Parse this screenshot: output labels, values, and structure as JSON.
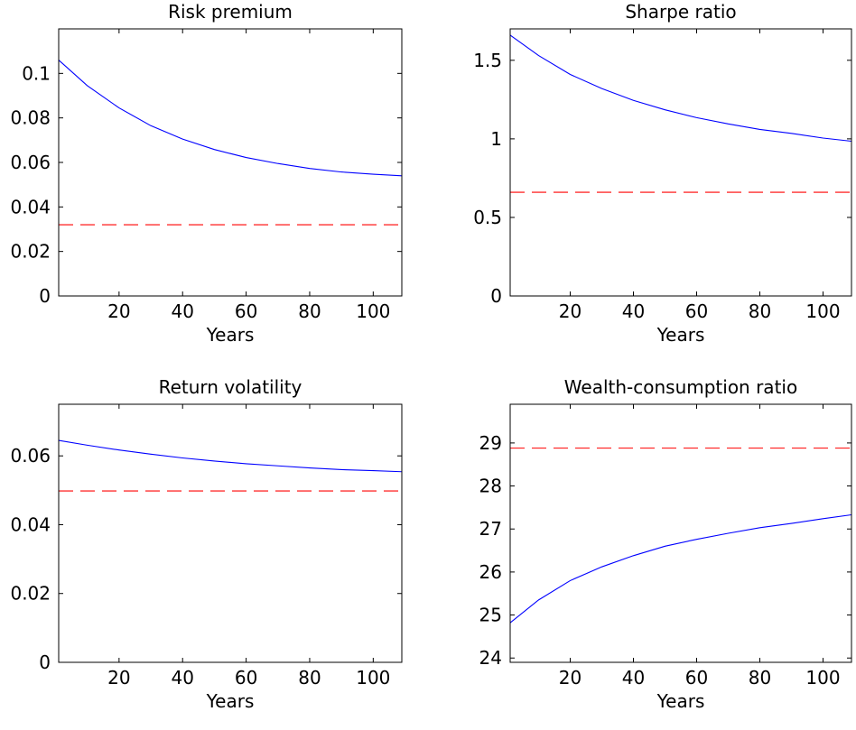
{
  "chart_data": [
    {
      "type": "line",
      "title": "Risk premium",
      "xlabel": "Years",
      "ylabel": "",
      "xlim": [
        1,
        109
      ],
      "ylim": [
        0,
        0.12
      ],
      "xticks": [
        20,
        40,
        60,
        80,
        100
      ],
      "yticks": [
        0,
        0.02,
        0.04,
        0.06,
        0.08,
        0.1
      ],
      "ytick_labels": [
        "0",
        "0.02",
        "0.04",
        "0.06",
        "0.08",
        "0.1"
      ],
      "grid": false,
      "series": [
        {
          "style": "solid",
          "color": "#0000ff",
          "x": [
            1,
            10,
            20,
            30,
            40,
            50,
            60,
            70,
            80,
            90,
            100,
            109
          ],
          "y": [
            0.106,
            0.0945,
            0.0845,
            0.0765,
            0.0705,
            0.0658,
            0.0622,
            0.0595,
            0.0573,
            0.0557,
            0.0547,
            0.054
          ]
        },
        {
          "style": "dashed",
          "color": "#ff0000",
          "x": [
            1,
            109
          ],
          "y": [
            0.032,
            0.032
          ]
        }
      ]
    },
    {
      "type": "line",
      "title": "Sharpe ratio",
      "xlabel": "Years",
      "ylabel": "",
      "xlim": [
        1,
        109
      ],
      "ylim": [
        0,
        1.7
      ],
      "xticks": [
        20,
        40,
        60,
        80,
        100
      ],
      "yticks": [
        0,
        0.5,
        1,
        1.5
      ],
      "ytick_labels": [
        "0",
        "0.5",
        "1",
        "1.5"
      ],
      "grid": false,
      "series": [
        {
          "style": "solid",
          "color": "#0000ff",
          "x": [
            1,
            10,
            20,
            30,
            40,
            50,
            60,
            70,
            80,
            90,
            100,
            109
          ],
          "y": [
            1.66,
            1.53,
            1.41,
            1.32,
            1.245,
            1.185,
            1.135,
            1.095,
            1.06,
            1.035,
            1.005,
            0.985
          ]
        },
        {
          "style": "dashed",
          "color": "#ff0000",
          "x": [
            1,
            109
          ],
          "y": [
            0.66,
            0.66
          ]
        }
      ]
    },
    {
      "type": "line",
      "title": "Return volatility",
      "xlabel": "Years",
      "ylabel": "",
      "xlim": [
        1,
        109
      ],
      "ylim": [
        0,
        0.075
      ],
      "xticks": [
        20,
        40,
        60,
        80,
        100
      ],
      "yticks": [
        0,
        0.02,
        0.04,
        0.06
      ],
      "ytick_labels": [
        "0",
        "0.02",
        "0.04",
        "0.06"
      ],
      "grid": false,
      "series": [
        {
          "style": "solid",
          "color": "#0000ff",
          "x": [
            1,
            10,
            20,
            30,
            40,
            50,
            60,
            70,
            80,
            90,
            100,
            109
          ],
          "y": [
            0.0645,
            0.0631,
            0.0617,
            0.0605,
            0.0594,
            0.0585,
            0.0577,
            0.0571,
            0.0565,
            0.056,
            0.0557,
            0.0554
          ]
        },
        {
          "style": "dashed",
          "color": "#ff0000",
          "x": [
            1,
            109
          ],
          "y": [
            0.0498,
            0.0498
          ]
        }
      ]
    },
    {
      "type": "line",
      "title": "Wealth-consumption ratio",
      "xlabel": "Years",
      "ylabel": "",
      "xlim": [
        1,
        109
      ],
      "ylim": [
        23.9,
        29.9
      ],
      "xticks": [
        20,
        40,
        60,
        80,
        100
      ],
      "yticks": [
        24,
        25,
        26,
        27,
        28,
        29
      ],
      "ytick_labels": [
        "24",
        "25",
        "26",
        "27",
        "28",
        "29"
      ],
      "grid": false,
      "series": [
        {
          "style": "solid",
          "color": "#0000ff",
          "x": [
            1,
            10,
            20,
            30,
            40,
            50,
            60,
            70,
            80,
            90,
            100,
            109
          ],
          "y": [
            24.82,
            25.35,
            25.8,
            26.12,
            26.38,
            26.6,
            26.76,
            26.9,
            27.03,
            27.13,
            27.24,
            27.33
          ]
        },
        {
          "style": "dashed",
          "color": "#ff0000",
          "x": [
            1,
            109
          ],
          "y": [
            28.88,
            28.88
          ]
        }
      ]
    }
  ]
}
